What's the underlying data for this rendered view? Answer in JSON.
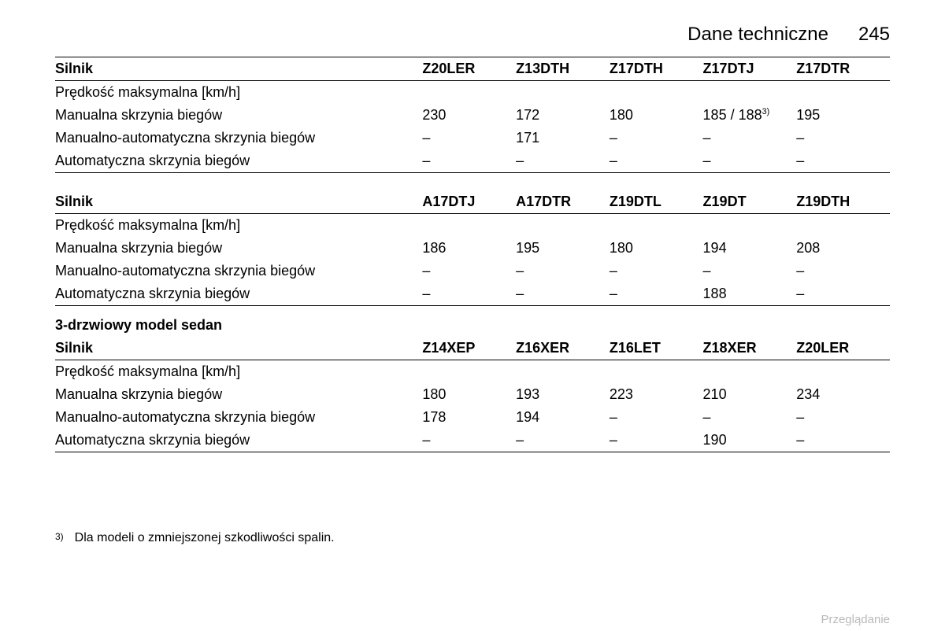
{
  "header": {
    "title": "Dane techniczne",
    "page": "245"
  },
  "rows": {
    "max_speed": "Prędkość maksymalna [km/h]",
    "manual": "Manualna skrzynia biegów",
    "semi": "Manualno-automatyczna skrzynia biegów",
    "auto": "Automatyczna skrzynia biegów",
    "silnik": "Silnik"
  },
  "t1": {
    "heads": [
      "Z20LER",
      "Z13DTH",
      "Z17DTH",
      "Z17DTJ",
      "Z17DTR"
    ],
    "manual": [
      "230",
      "172",
      "180",
      "185 / 188",
      "195"
    ],
    "manual_sup_col": 3,
    "manual_sup": "3)",
    "semi": [
      "–",
      "171",
      "–",
      "–",
      "–"
    ],
    "auto": [
      "–",
      "–",
      "–",
      "–",
      "–"
    ]
  },
  "t2": {
    "heads": [
      "A17DTJ",
      "A17DTR",
      "Z19DTL",
      "Z19DT",
      "Z19DTH"
    ],
    "manual": [
      "186",
      "195",
      "180",
      "194",
      "208"
    ],
    "semi": [
      "–",
      "–",
      "–",
      "–",
      "–"
    ],
    "auto": [
      "–",
      "–",
      "–",
      "188",
      "–"
    ]
  },
  "section": "3-drzwiowy model sedan",
  "t3": {
    "heads": [
      "Z14XEP",
      "Z16XER",
      "Z16LET",
      "Z18XER",
      "Z20LER"
    ],
    "manual": [
      "180",
      "193",
      "223",
      "210",
      "234"
    ],
    "semi": [
      "178",
      "194",
      "–",
      "–",
      "–"
    ],
    "auto": [
      "–",
      "–",
      "–",
      "190",
      "–"
    ]
  },
  "footnote": {
    "marker": "3)",
    "text": "Dla modeli o zmniejszonej szkodliwości spalin."
  },
  "footer": "Przeglądanie"
}
